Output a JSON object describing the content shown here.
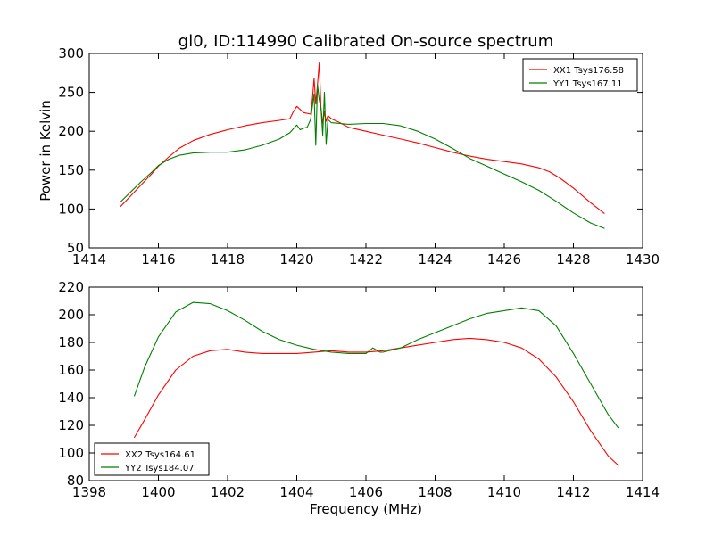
{
  "chart_data": [
    {
      "type": "line",
      "title": "gl0, ID:114990 Calibrated On-source spectrum",
      "xlabel": "",
      "ylabel": "Power in Kelvin",
      "xlim": [
        1414,
        1430
      ],
      "ylim": [
        50,
        300
      ],
      "x_ticks": [
        "1414",
        "1416",
        "1418",
        "1420",
        "1422",
        "1424",
        "1426",
        "1428",
        "1430"
      ],
      "y_ticks": [
        "50",
        "100",
        "150",
        "200",
        "250",
        "300"
      ],
      "grid": false,
      "legend_position": "top-right",
      "series": [
        {
          "name": "XX1 Tsys176.58",
          "color": "#ff0000",
          "x": [
            1414.9,
            1415.2,
            1415.5,
            1415.8,
            1416.0,
            1416.3,
            1416.6,
            1417.0,
            1417.5,
            1418.0,
            1418.5,
            1419.0,
            1419.5,
            1419.8,
            1419.9,
            1420.0,
            1420.2,
            1420.4,
            1420.45,
            1420.5,
            1420.55,
            1420.6,
            1420.65,
            1420.7,
            1420.75,
            1420.8,
            1420.85,
            1420.9,
            1421.0,
            1421.2,
            1421.5,
            1422.0,
            1422.5,
            1423.0,
            1423.5,
            1424.0,
            1424.5,
            1425.0,
            1425.5,
            1426.0,
            1426.5,
            1427.0,
            1427.3,
            1427.6,
            1428.0,
            1428.5,
            1428.9
          ],
          "y": [
            103,
            117,
            131,
            145,
            155,
            167,
            178,
            188,
            196,
            202,
            207,
            211,
            214,
            216,
            225,
            232,
            224,
            222,
            240,
            268,
            235,
            260,
            288,
            230,
            210,
            225,
            213,
            220,
            216,
            212,
            205,
            200,
            195,
            190,
            185,
            179,
            173,
            168,
            164,
            161,
            158,
            153,
            148,
            140,
            127,
            108,
            94
          ]
        },
        {
          "name": "YY1 Tsys167.11",
          "color": "#008000",
          "x": [
            1414.9,
            1415.2,
            1415.5,
            1415.8,
            1416.0,
            1416.3,
            1416.6,
            1417.0,
            1417.5,
            1418.0,
            1418.5,
            1419.0,
            1419.5,
            1419.8,
            1420.0,
            1420.1,
            1420.2,
            1420.3,
            1420.4,
            1420.5,
            1420.55,
            1420.6,
            1420.65,
            1420.7,
            1420.75,
            1420.8,
            1420.85,
            1420.9,
            1421.0,
            1421.5,
            1422.0,
            1422.5,
            1423.0,
            1423.5,
            1424.0,
            1424.5,
            1425.0,
            1425.5,
            1426.0,
            1426.5,
            1427.0,
            1427.5,
            1428.0,
            1428.5,
            1428.9
          ],
          "y": [
            109,
            122,
            135,
            147,
            156,
            164,
            169,
            172,
            173,
            173,
            176,
            182,
            190,
            198,
            208,
            202,
            204,
            205,
            215,
            248,
            182,
            260,
            240,
            230,
            195,
            250,
            183,
            215,
            211,
            209,
            210,
            210,
            207,
            200,
            190,
            178,
            165,
            155,
            145,
            135,
            124,
            110,
            95,
            82,
            75
          ]
        }
      ]
    },
    {
      "type": "line",
      "title": "",
      "xlabel": "Frequency (MHz)",
      "ylabel": "",
      "xlim": [
        1398,
        1414
      ],
      "ylim": [
        80,
        220
      ],
      "x_ticks": [
        "1398",
        "1400",
        "1402",
        "1404",
        "1406",
        "1408",
        "1410",
        "1412",
        "1414"
      ],
      "y_ticks": [
        "80",
        "100",
        "120",
        "140",
        "160",
        "180",
        "200",
        "220"
      ],
      "grid": false,
      "legend_position": "bottom-left",
      "series": [
        {
          "name": "XX2 Tsys164.61",
          "color": "#ff0000",
          "x": [
            1399.3,
            1399.6,
            1400.0,
            1400.5,
            1401.0,
            1401.5,
            1402.0,
            1402.5,
            1403.0,
            1403.5,
            1404.0,
            1404.5,
            1405.0,
            1405.5,
            1406.0,
            1406.5,
            1407.0,
            1407.5,
            1408.0,
            1408.5,
            1409.0,
            1409.5,
            1410.0,
            1410.5,
            1411.0,
            1411.5,
            1412.0,
            1412.5,
            1413.0,
            1413.3
          ],
          "y": [
            111,
            124,
            142,
            160,
            170,
            174,
            175,
            173,
            172,
            172,
            172,
            173,
            174,
            173,
            173,
            174,
            176,
            178,
            180,
            182,
            183,
            182,
            180,
            176,
            168,
            155,
            137,
            116,
            98,
            91
          ]
        },
        {
          "name": "YY2 Tsys184.07",
          "color": "#008000",
          "x": [
            1399.3,
            1399.6,
            1400.0,
            1400.5,
            1401.0,
            1401.5,
            1402.0,
            1402.5,
            1403.0,
            1403.5,
            1404.0,
            1404.5,
            1405.0,
            1405.5,
            1406.0,
            1406.2,
            1406.4,
            1406.5,
            1407.0,
            1407.5,
            1408.0,
            1408.5,
            1409.0,
            1409.5,
            1410.0,
            1410.5,
            1411.0,
            1411.5,
            1412.0,
            1412.5,
            1413.0,
            1413.3
          ],
          "y": [
            141,
            162,
            184,
            202,
            209,
            208,
            203,
            196,
            188,
            182,
            178,
            175,
            173,
            172,
            172,
            176,
            173,
            173,
            176,
            182,
            187,
            192,
            197,
            201,
            203,
            205,
            203,
            192,
            172,
            150,
            128,
            118
          ]
        }
      ]
    }
  ]
}
